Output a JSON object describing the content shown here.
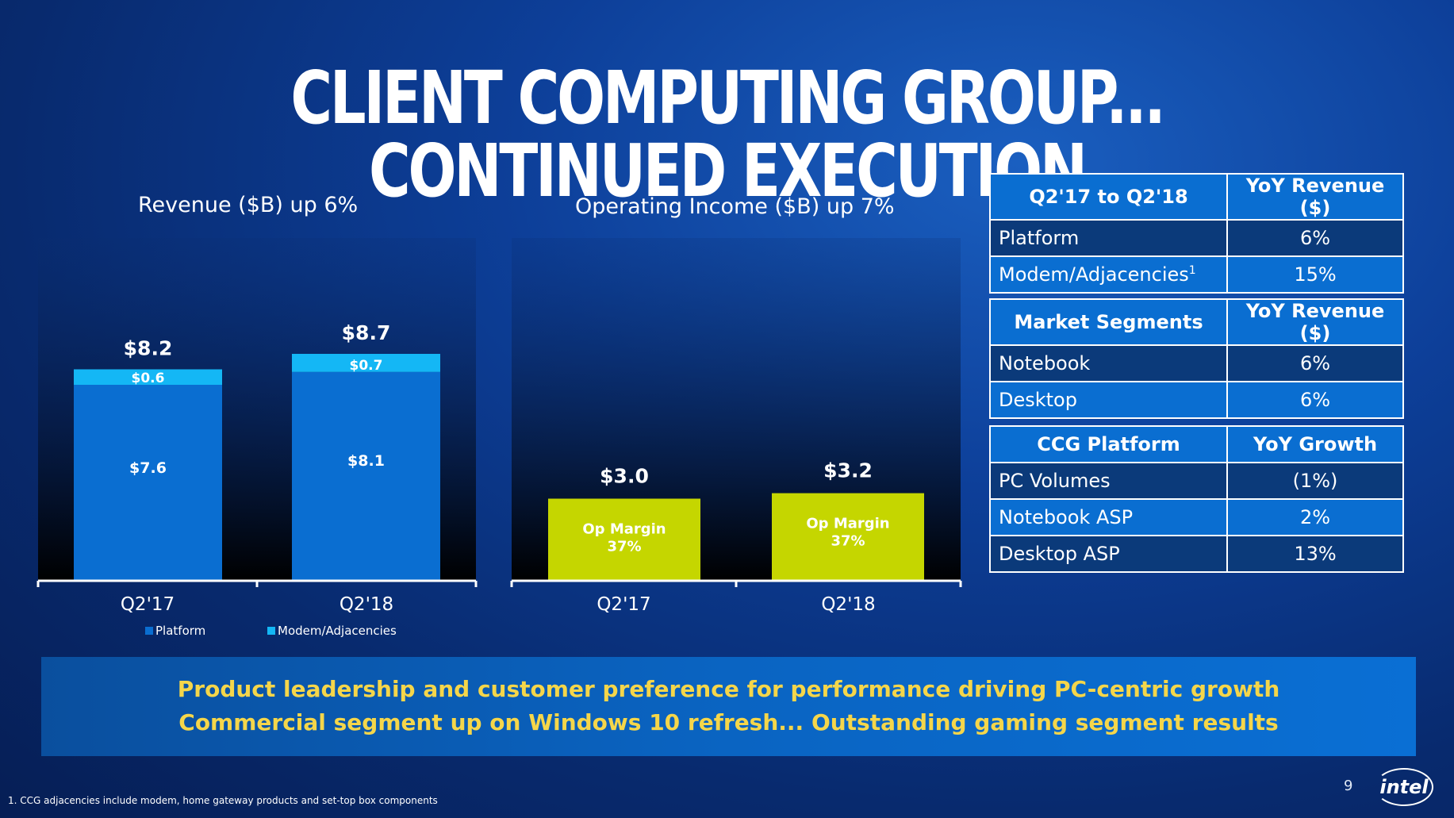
{
  "title": "CLIENT COMPUTING GROUP... CONTINUED EXECUTION",
  "chart_data": [
    {
      "type": "bar",
      "title": "Revenue ($B) up 6%",
      "categories": [
        "Q2'17",
        "Q2'18"
      ],
      "stacked": true,
      "series": [
        {
          "name": "Platform",
          "values": [
            7.6,
            8.1
          ],
          "labels": [
            "$7.6",
            "$8.1"
          ],
          "color": "#0a6ed1"
        },
        {
          "name": "Modem/Adjacencies",
          "values": [
            0.6,
            0.7
          ],
          "labels": [
            "$0.6",
            "$0.7"
          ],
          "color": "#14b7f5"
        }
      ],
      "totals": [
        "$8.2",
        "$8.7"
      ],
      "legend": "bottom-left",
      "ylim": [
        0,
        10
      ]
    },
    {
      "type": "bar",
      "title": "Operating Income ($B) up 7%",
      "categories": [
        "Q2'17",
        "Q2'18"
      ],
      "series": [
        {
          "name": "Operating Income",
          "values": [
            3.0,
            3.2
          ],
          "color": "#c5d600"
        }
      ],
      "totals": [
        "$3.0",
        "$3.2"
      ],
      "bar_labels": [
        [
          "Op Margin",
          "37%"
        ],
        [
          "Op Margin",
          "37%"
        ]
      ],
      "ylim": [
        0,
        10
      ]
    }
  ],
  "tables": [
    {
      "header": [
        "Q2'17 to Q2'18",
        "YoY Revenue ($)"
      ],
      "rows": [
        [
          "Platform",
          "6%"
        ],
        [
          "Modem/Adjacencies",
          "15%"
        ]
      ],
      "superscript_row1": "1"
    },
    {
      "header": [
        "Market Segments",
        "YoY Revenue ($)"
      ],
      "rows": [
        [
          "Notebook",
          "6%"
        ],
        [
          "Desktop",
          "6%"
        ]
      ]
    },
    {
      "header": [
        "CCG Platform",
        "YoY Growth"
      ],
      "rows": [
        [
          "PC Volumes",
          "(1%)"
        ],
        [
          "Notebook ASP",
          "2%"
        ],
        [
          "Desktop ASP",
          "13%"
        ]
      ]
    }
  ],
  "banner": {
    "line1": "Product leadership and customer preference for performance driving PC-centric growth",
    "line2": "Commercial segment up on Windows 10 refresh... Outstanding gaming segment results"
  },
  "footnote": "1. CCG adjacencies include modem, home gateway products and set-top box components",
  "page_number": "9",
  "logo_text": "intel",
  "colors": {
    "platform": "#0a6ed1",
    "modem": "#14b7f5",
    "op_income": "#c5d600",
    "banner_text": "#f5d64a"
  }
}
